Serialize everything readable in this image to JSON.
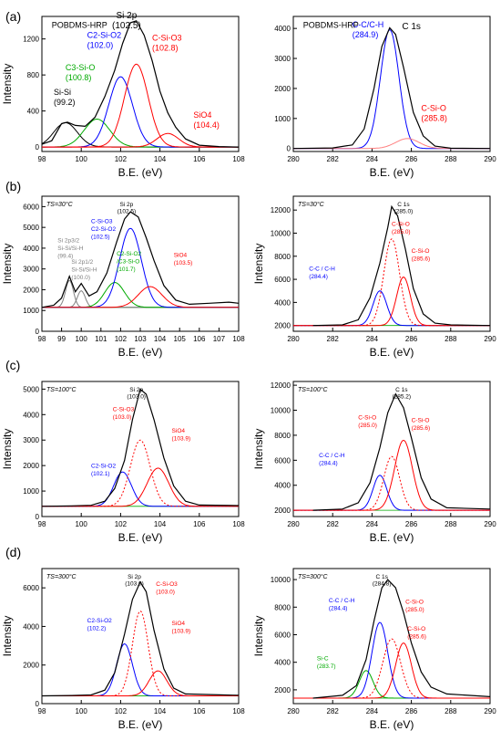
{
  "figure": {
    "row_labels": [
      "(a)",
      "(b)",
      "(c)",
      "(d)"
    ]
  },
  "chart_data": [
    {
      "type": "line",
      "panel": "a-left",
      "sample_label": "POBDMS-HRP",
      "ts_label": "",
      "xlabel": "B.E. (eV)",
      "ylabel": "Intensity",
      "xlim": [
        98,
        108
      ],
      "ylim": [
        -50,
        1450
      ],
      "xticks": [
        98,
        100,
        102,
        104,
        106,
        108
      ],
      "yticks": [
        0,
        400,
        800,
        1200
      ],
      "envelope": {
        "color": "#000000",
        "style": "solid",
        "points": [
          [
            98,
            30
          ],
          [
            98.5,
            70
          ],
          [
            99,
            260
          ],
          [
            99.3,
            275
          ],
          [
            99.7,
            240
          ],
          [
            100.2,
            230
          ],
          [
            100.7,
            330
          ],
          [
            101.2,
            560
          ],
          [
            101.7,
            850
          ],
          [
            102.1,
            1150
          ],
          [
            102.5,
            1380
          ],
          [
            102.8,
            1400
          ],
          [
            103.2,
            1240
          ],
          [
            103.6,
            960
          ],
          [
            104,
            620
          ],
          [
            104.4,
            380
          ],
          [
            104.8,
            220
          ],
          [
            105.3,
            90
          ],
          [
            106,
            20
          ],
          [
            107,
            5
          ],
          [
            108,
            0
          ]
        ]
      },
      "components": [
        {
          "color": "#000000",
          "style": "solid",
          "center": 99.2,
          "height": 270,
          "width": 0.6,
          "label": "Si-Si\n(99.2)",
          "label_color": "#000000"
        },
        {
          "color": "#00aa00",
          "style": "solid",
          "center": 100.8,
          "height": 310,
          "width": 0.65,
          "label": "C3-Si-O\n(100.8)",
          "label_color": "#00aa00"
        },
        {
          "color": "#0000ff",
          "style": "solid",
          "center": 102.0,
          "height": 780,
          "width": 0.6,
          "label": "C2-Si-O2\n(102.0)",
          "label_color": "#0000ff"
        },
        {
          "color": "#ff0000",
          "style": "solid",
          "center": 102.8,
          "height": 920,
          "width": 0.6,
          "label": "C-Si-O3\n(102.8)",
          "label_color": "#ff0000"
        },
        {
          "color": "#ff0000",
          "style": "solid",
          "center": 104.4,
          "height": 150,
          "width": 0.55,
          "label": "SiO4\n(104.4)",
          "label_color": "#ff0000"
        }
      ],
      "peak_label": "Si 2p\n(102.5)"
    },
    {
      "type": "line",
      "panel": "a-right",
      "sample_label": "POBDMS-HRP",
      "ts_label": "",
      "xlabel": "B.E. (eV)",
      "ylabel": "",
      "xlim": [
        280,
        290
      ],
      "ylim": [
        -100,
        4400
      ],
      "xticks": [
        280,
        282,
        284,
        286,
        288,
        290
      ],
      "yticks": [
        0,
        1000,
        2000,
        3000,
        4000
      ],
      "envelope": {
        "color": "#000000",
        "style": "solid",
        "points": [
          [
            280,
            0
          ],
          [
            282,
            20
          ],
          [
            283,
            120
          ],
          [
            283.6,
            650
          ],
          [
            284.1,
            2000
          ],
          [
            284.5,
            3400
          ],
          [
            284.9,
            4020
          ],
          [
            285.2,
            3800
          ],
          [
            285.6,
            2700
          ],
          [
            286.1,
            1200
          ],
          [
            286.6,
            420
          ],
          [
            287.2,
            80
          ],
          [
            288,
            10
          ],
          [
            290,
            0
          ]
        ]
      },
      "components": [
        {
          "color": "#0000ff",
          "style": "solid",
          "center": 284.9,
          "height": 3960,
          "width": 0.47,
          "label": "C-C/C-H\n(284.9)",
          "label_color": "#0000ff"
        },
        {
          "color": "#ff8080",
          "style": "solid",
          "center": 285.8,
          "height": 330,
          "width": 0.6,
          "label": "C-Si-O\n(285.8)",
          "label_color": "#ff0000"
        }
      ],
      "peak_label": "C 1s"
    },
    {
      "type": "line",
      "panel": "b-left",
      "sample_label": "",
      "ts_label": "TS=30°C",
      "xlabel": "B.E. (eV)",
      "ylabel": "Intensity",
      "xlim": [
        98,
        108
      ],
      "ylim": [
        0,
        6500
      ],
      "xticks": [
        98,
        99,
        100,
        101,
        102,
        103,
        104,
        105,
        106,
        107,
        108
      ],
      "yticks": [
        0,
        1000,
        2000,
        3000,
        4000,
        5000,
        6000
      ],
      "envelope": {
        "color": "#000000",
        "style": "solid",
        "points": [
          [
            98,
            1150
          ],
          [
            98.6,
            1250
          ],
          [
            99,
            1600
          ],
          [
            99.4,
            2650
          ],
          [
            99.7,
            1900
          ],
          [
            100,
            2300
          ],
          [
            100.4,
            1700
          ],
          [
            100.8,
            1900
          ],
          [
            101.3,
            2800
          ],
          [
            101.8,
            4300
          ],
          [
            102.2,
            5400
          ],
          [
            102.5,
            5750
          ],
          [
            102.9,
            5500
          ],
          [
            103.3,
            4500
          ],
          [
            103.7,
            3400
          ],
          [
            104.2,
            2200
          ],
          [
            104.8,
            1500
          ],
          [
            105.5,
            1300
          ],
          [
            106.5,
            1350
          ],
          [
            107.5,
            1400
          ],
          [
            108,
            1350
          ]
        ]
      },
      "components": [
        {
          "color": "#808080",
          "style": "solid",
          "center": 99.4,
          "height": 1300,
          "width": 0.2,
          "label": "Si 2p3/2\nSi-Si/Si-H\n(99.4)",
          "label_color": "#808080"
        },
        {
          "color": "#808080",
          "style": "solid",
          "center": 100.0,
          "height": 800,
          "width": 0.2,
          "label": "Si 2p1/2\nSi-Si/Si-H\n(100.0)",
          "label_color": "#808080"
        },
        {
          "color": "#00aa00",
          "style": "solid",
          "center": 101.7,
          "height": 1200,
          "width": 0.5,
          "label": "C2-Si-O2\n/C3-Si-O\n(101.7)",
          "label_color": "#00aa00"
        },
        {
          "color": "#0000ff",
          "style": "solid",
          "center": 102.5,
          "height": 3800,
          "width": 0.55,
          "label": "C-Si-O3\nC2-Si-O2\n(102.5)",
          "label_color": "#0000ff"
        },
        {
          "color": "#ff0000",
          "style": "solid",
          "center": 103.5,
          "height": 1000,
          "width": 0.6,
          "label": "SiO4\n(103.5)",
          "label_color": "#ff0000"
        }
      ],
      "baseline": 1150,
      "peak_label": "Si 2p\n(102.5)"
    },
    {
      "type": "line",
      "panel": "b-right",
      "sample_label": "",
      "ts_label": "TS=30°C",
      "xlabel": "B.E. (eV)",
      "ylabel": "Intensity",
      "xlim": [
        280,
        290
      ],
      "ylim": [
        1500,
        13200
      ],
      "xticks": [
        280,
        282,
        284,
        286,
        288,
        290
      ],
      "yticks": [
        2000,
        4000,
        6000,
        8000,
        10000,
        12000
      ],
      "envelope": {
        "color": "#000000",
        "style": "solid",
        "points": [
          [
            281,
            2000
          ],
          [
            282.5,
            2050
          ],
          [
            283.3,
            2500
          ],
          [
            283.9,
            4400
          ],
          [
            284.4,
            7400
          ],
          [
            284.8,
            10500
          ],
          [
            285.0,
            12300
          ],
          [
            285.3,
            11500
          ],
          [
            285.7,
            8600
          ],
          [
            286.1,
            5200
          ],
          [
            286.6,
            3000
          ],
          [
            287.2,
            2200
          ],
          [
            288,
            2050
          ],
          [
            290,
            2000
          ]
        ]
      },
      "components": [
        {
          "color": "#0000ff",
          "style": "solid",
          "center": 284.4,
          "height": 3000,
          "width": 0.35,
          "label": "C-C / C-H\n(284.4)",
          "label_color": "#0000ff"
        },
        {
          "color": "#ff0000",
          "style": "dotted",
          "center": 285.0,
          "height": 7500,
          "width": 0.4,
          "label": "C-Si-O\n(285.0)",
          "label_color": "#ff0000"
        },
        {
          "color": "#ff0000",
          "style": "solid",
          "center": 285.6,
          "height": 4200,
          "width": 0.35,
          "label": "C-Si-O\n(285.6)",
          "label_color": "#ff0000"
        }
      ],
      "baseline": 2000,
      "peak_label": "C 1s\n(285.0)"
    },
    {
      "type": "line",
      "panel": "c-left",
      "sample_label": "",
      "ts_label": "TS=100°C",
      "xlabel": "B.E. (eV)",
      "ylabel": "Intensity",
      "xlim": [
        98,
        108
      ],
      "ylim": [
        0,
        5300
      ],
      "xticks": [
        98,
        100,
        102,
        104,
        106,
        108
      ],
      "yticks": [
        0,
        1000,
        2000,
        3000,
        4000,
        5000
      ],
      "envelope": {
        "color": "#000000",
        "style": "solid",
        "points": [
          [
            98,
            400
          ],
          [
            99.5,
            420
          ],
          [
            100.5,
            440
          ],
          [
            101.2,
            600
          ],
          [
            101.7,
            1100
          ],
          [
            102.2,
            2200
          ],
          [
            102.6,
            3800
          ],
          [
            103.0,
            5000
          ],
          [
            103.3,
            4800
          ],
          [
            103.7,
            3800
          ],
          [
            104.2,
            2300
          ],
          [
            104.7,
            1200
          ],
          [
            105.3,
            600
          ],
          [
            106,
            450
          ],
          [
            108,
            430
          ]
        ]
      },
      "components": [
        {
          "color": "#0000ff",
          "style": "solid",
          "center": 102.1,
          "height": 1350,
          "width": 0.45,
          "label": "C2-Si-O2\n(102.1)",
          "label_color": "#0000ff"
        },
        {
          "color": "#ff0000",
          "style": "dotted",
          "center": 103.0,
          "height": 2600,
          "width": 0.5,
          "label": "C-Si-O3\n(103.0)",
          "label_color": "#ff0000"
        },
        {
          "color": "#ff0000",
          "style": "solid",
          "center": 103.9,
          "height": 1500,
          "width": 0.55,
          "label": "SiO4\n(103.9)",
          "label_color": "#ff0000"
        }
      ],
      "baseline": 400,
      "peak_label": "Si 2p\n(103.0)"
    },
    {
      "type": "line",
      "panel": "c-right",
      "sample_label": "",
      "ts_label": "TS=100°C",
      "xlabel": "B.E. (eV)",
      "ylabel": "Intensity",
      "xlim": [
        280,
        290
      ],
      "ylim": [
        1500,
        12300
      ],
      "xticks": [
        280,
        282,
        284,
        286,
        288,
        290
      ],
      "yticks": [
        2000,
        4000,
        6000,
        8000,
        10000,
        12000
      ],
      "envelope": {
        "color": "#000000",
        "style": "solid",
        "points": [
          [
            281,
            2000
          ],
          [
            282.5,
            2100
          ],
          [
            283.3,
            2600
          ],
          [
            283.9,
            4200
          ],
          [
            284.4,
            7000
          ],
          [
            284.8,
            9800
          ],
          [
            285.2,
            11300
          ],
          [
            285.6,
            10200
          ],
          [
            286.0,
            7800
          ],
          [
            286.5,
            4600
          ],
          [
            287.0,
            2900
          ],
          [
            287.8,
            2200
          ],
          [
            290,
            2100
          ]
        ]
      },
      "components": [
        {
          "color": "#0000ff",
          "style": "solid",
          "center": 284.4,
          "height": 2800,
          "width": 0.35,
          "label": "C-C / C-H\n(284.4)",
          "label_color": "#0000ff"
        },
        {
          "color": "#ff0000",
          "style": "dotted",
          "center": 285.0,
          "height": 4300,
          "width": 0.4,
          "label": "C-Si-O\n(285.0)",
          "label_color": "#ff0000"
        },
        {
          "color": "#ff0000",
          "style": "solid",
          "center": 285.6,
          "height": 5600,
          "width": 0.45,
          "label": "C-Si-O\n(285.6)",
          "label_color": "#ff0000"
        }
      ],
      "baseline": 2000,
      "peak_label": "C 1s\n(285.2)"
    },
    {
      "type": "line",
      "panel": "d-left",
      "sample_label": "",
      "ts_label": "TS=300°C",
      "xlabel": "B.E. (eV)",
      "ylabel": "Intensity",
      "xlim": [
        98,
        108
      ],
      "ylim": [
        0,
        7000
      ],
      "xticks": [
        98,
        100,
        102,
        104,
        106,
        108
      ],
      "yticks": [
        0,
        2000,
        4000,
        6000
      ],
      "envelope": {
        "color": "#000000",
        "style": "solid",
        "points": [
          [
            98,
            400
          ],
          [
            99.5,
            420
          ],
          [
            100.5,
            450
          ],
          [
            101.2,
            700
          ],
          [
            101.7,
            1600
          ],
          [
            102.2,
            3600
          ],
          [
            102.6,
            5400
          ],
          [
            103.0,
            6300
          ],
          [
            103.3,
            5800
          ],
          [
            103.7,
            3800
          ],
          [
            104.2,
            1800
          ],
          [
            104.7,
            800
          ],
          [
            105.3,
            500
          ],
          [
            108,
            430
          ]
        ]
      },
      "components": [
        {
          "color": "#0000ff",
          "style": "solid",
          "center": 102.2,
          "height": 2700,
          "width": 0.4,
          "label": "C2-Si-O2\n(102.2)",
          "label_color": "#0000ff"
        },
        {
          "color": "#ff0000",
          "style": "dotted",
          "center": 103.0,
          "height": 4400,
          "width": 0.4,
          "label": "C-Si-O3\n(103.0)",
          "label_color": "#ff0000"
        },
        {
          "color": "#ff0000",
          "style": "solid",
          "center": 103.9,
          "height": 1300,
          "width": 0.45,
          "label": "SiO4\n(103.9)",
          "label_color": "#ff0000"
        }
      ],
      "baseline": 400,
      "peak_label": "Si 2p\n(103.0)"
    },
    {
      "type": "line",
      "panel": "d-right",
      "sample_label": "",
      "ts_label": "TS=300°C",
      "xlabel": "B.E. (eV)",
      "ylabel": "Intensity",
      "xlim": [
        280,
        290
      ],
      "ylim": [
        1000,
        10800
      ],
      "xticks": [
        280,
        282,
        284,
        286,
        288,
        290
      ],
      "yticks": [
        2000,
        4000,
        6000,
        8000,
        10000
      ],
      "envelope": {
        "color": "#000000",
        "style": "solid",
        "points": [
          [
            281,
            1400
          ],
          [
            282.5,
            1600
          ],
          [
            283.2,
            2300
          ],
          [
            283.7,
            4200
          ],
          [
            284.1,
            7000
          ],
          [
            284.5,
            9400
          ],
          [
            284.8,
            10000
          ],
          [
            285.2,
            9400
          ],
          [
            285.6,
            7600
          ],
          [
            286.0,
            5400
          ],
          [
            286.5,
            3300
          ],
          [
            287.0,
            2200
          ],
          [
            287.8,
            1700
          ],
          [
            290,
            1500
          ]
        ]
      },
      "components": [
        {
          "color": "#00aa00",
          "style": "solid",
          "center": 283.7,
          "height": 2000,
          "width": 0.35,
          "label": "Si-C\n(283.7)",
          "label_color": "#00aa00"
        },
        {
          "color": "#0000ff",
          "style": "solid",
          "center": 284.4,
          "height": 5500,
          "width": 0.4,
          "label": "C-C / C-H\n(284.4)",
          "label_color": "#0000ff"
        },
        {
          "color": "#ff0000",
          "style": "dotted",
          "center": 285.0,
          "height": 4300,
          "width": 0.45,
          "label": "C-Si-O\n(285.0)",
          "label_color": "#ff0000"
        },
        {
          "color": "#ff0000",
          "style": "solid",
          "center": 285.6,
          "height": 4000,
          "width": 0.4,
          "label": "C-Si-O\n(285.6)",
          "label_color": "#ff0000"
        }
      ],
      "baseline": 1400,
      "peak_label": "C 1s\n(284.8)"
    }
  ]
}
